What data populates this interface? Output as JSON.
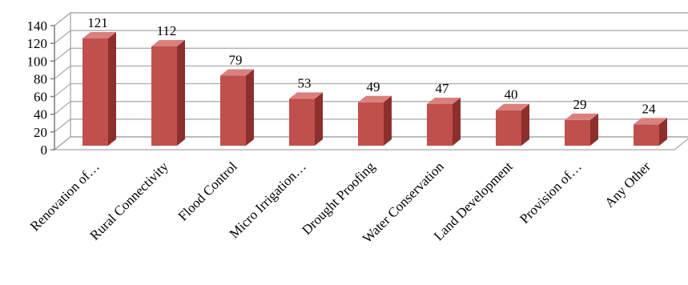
{
  "chart_data": {
    "type": "bar",
    "categories": [
      "Renovation of…",
      "Rural Connectivity",
      "Flood Control",
      "Micro Irrigation…",
      "Drought Proofing",
      "Water Conservation",
      "Land Development",
      "Provision of…",
      "Any Other"
    ],
    "values": [
      121,
      112,
      79,
      53,
      49,
      47,
      40,
      29,
      24
    ],
    "data_labels": [
      "121",
      "112",
      "79",
      "53",
      "49",
      "47",
      "40",
      "29",
      "24"
    ],
    "y_ticks": [
      "0",
      "20",
      "40",
      "60",
      "80",
      "100",
      "120",
      "140"
    ],
    "ylim": [
      0,
      140
    ],
    "grid": true,
    "style": "3d-column",
    "colors": {
      "bar_front": "#c0504d",
      "bar_side": "#8c2f2d",
      "bar_top": "#d9807d",
      "grid": "#a6a6a6"
    }
  }
}
